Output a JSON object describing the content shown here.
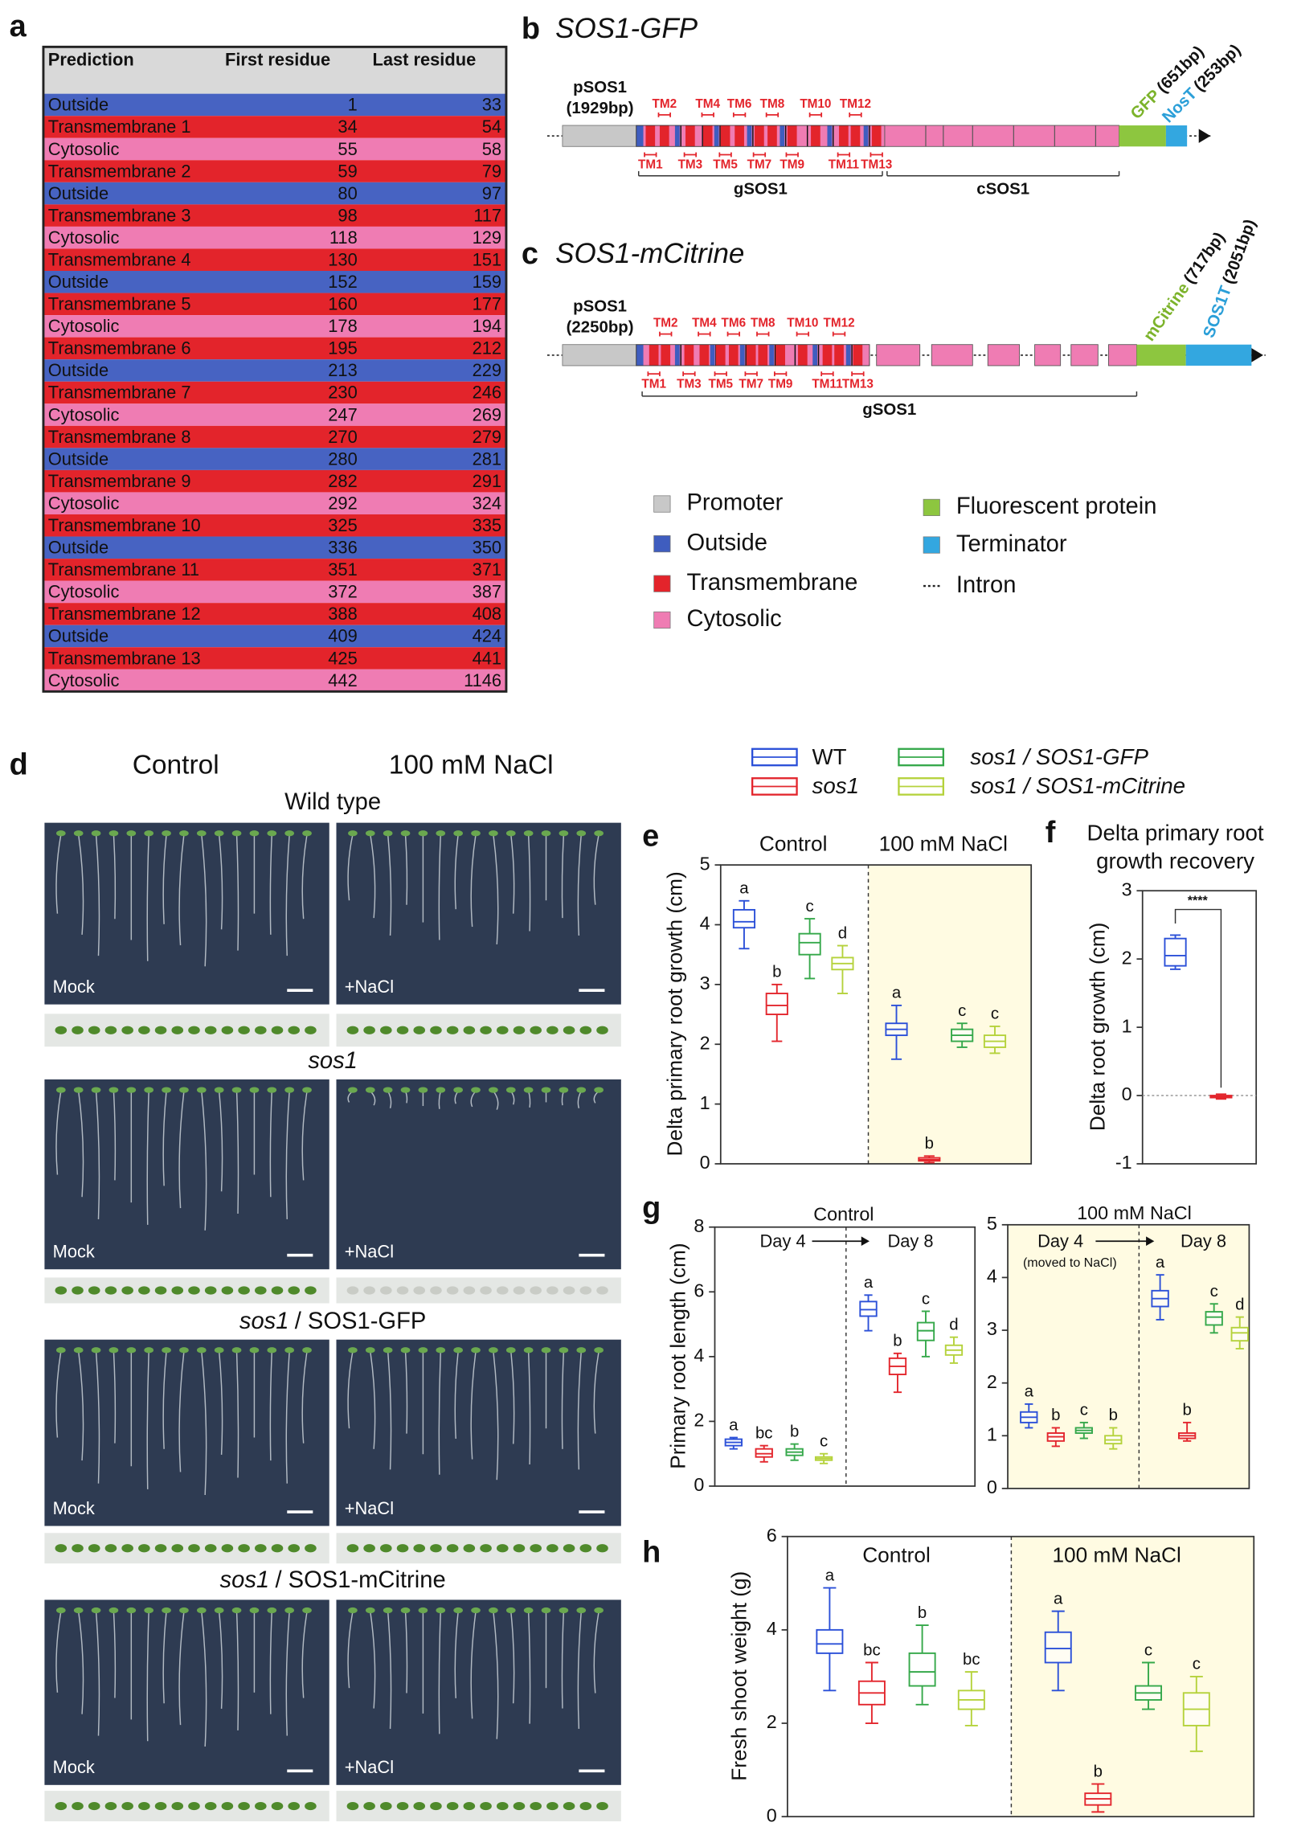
{
  "table": {
    "label": "a",
    "columns": [
      "Prediction",
      "First residue",
      "Last residue"
    ],
    "rows": [
      {
        "region": "Outside",
        "first": 1,
        "last": 33,
        "color": "#4763c2"
      },
      {
        "region": "Transmembrane 1",
        "first": 34,
        "last": 54,
        "color": "#e3242b"
      },
      {
        "region": "Cytosolic",
        "first": 55,
        "last": 58,
        "color": "#ef7cb3"
      },
      {
        "region": "Transmembrane 2",
        "first": 59,
        "last": 79,
        "color": "#e3242b"
      },
      {
        "region": "Outside",
        "first": 80,
        "last": 97,
        "color": "#4763c2"
      },
      {
        "region": "Transmembrane 3",
        "first": 98,
        "last": 117,
        "color": "#e3242b"
      },
      {
        "region": "Cytosolic",
        "first": 118,
        "last": 129,
        "color": "#ef7cb3"
      },
      {
        "region": "Transmembrane 4",
        "first": 130,
        "last": 151,
        "color": "#e3242b"
      },
      {
        "region": "Outside",
        "first": 152,
        "last": 159,
        "color": "#4763c2"
      },
      {
        "region": "Transmembrane 5",
        "first": 160,
        "last": 177,
        "color": "#e3242b"
      },
      {
        "region": "Cytosolic",
        "first": 178,
        "last": 194,
        "color": "#ef7cb3"
      },
      {
        "region": "Transmembrane 6",
        "first": 195,
        "last": 212,
        "color": "#e3242b"
      },
      {
        "region": "Outside",
        "first": 213,
        "last": 229,
        "color": "#4763c2"
      },
      {
        "region": "Transmembrane 7",
        "first": 230,
        "last": 246,
        "color": "#e3242b"
      },
      {
        "region": "Cytosolic",
        "first": 247,
        "last": 269,
        "color": "#ef7cb3"
      },
      {
        "region": "Transmembrane 8",
        "first": 270,
        "last": 279,
        "color": "#e3242b"
      },
      {
        "region": "Outside",
        "first": 280,
        "last": 281,
        "color": "#4763c2"
      },
      {
        "region": "Transmembrane 9",
        "first": 282,
        "last": 291,
        "color": "#e3242b"
      },
      {
        "region": "Cytosolic",
        "first": 292,
        "last": 324,
        "color": "#ef7cb3"
      },
      {
        "region": "Transmembrane 10",
        "first": 325,
        "last": 335,
        "color": "#e3242b"
      },
      {
        "region": "Outside",
        "first": 336,
        "last": 350,
        "color": "#4763c2"
      },
      {
        "region": "Transmembrane 11",
        "first": 351,
        "last": 371,
        "color": "#e3242b"
      },
      {
        "region": "Cytosolic",
        "first": 372,
        "last": 387,
        "color": "#ef7cb3"
      },
      {
        "region": "Transmembrane 12",
        "first": 388,
        "last": 408,
        "color": "#e3242b"
      },
      {
        "region": "Outside",
        "first": 409,
        "last": 424,
        "color": "#4763c2"
      },
      {
        "region": "Transmembrane 13",
        "first": 425,
        "last": 441,
        "color": "#e3242b"
      },
      {
        "region": "Cytosolic",
        "first": 442,
        "last": 1146,
        "color": "#ef7cb3"
      }
    ]
  },
  "panel_b": {
    "label": "b",
    "title": "SOS1-GFP",
    "promoter": [
      "pSOS1",
      "(1929bp)"
    ],
    "tm_top": [
      "TM2",
      "TM4",
      "TM6",
      "TM8",
      "TM10",
      "TM12"
    ],
    "tm_bottom": [
      "TM1",
      "TM3",
      "TM5",
      "TM7",
      "TM9",
      "TM11",
      "TM13"
    ],
    "regions": [
      "gSOS1",
      "cSOS1"
    ],
    "tag": {
      "name": "GFP",
      "size": "(651bp)"
    },
    "terminator": {
      "name": "NosT",
      "size": "(253bp)"
    }
  },
  "panel_c": {
    "label": "c",
    "title": "SOS1-mCitrine",
    "promoter": [
      "pSOS1",
      "(2250bp)"
    ],
    "tm_top": [
      "TM2",
      "TM4",
      "TM6",
      "TM8",
      "TM10",
      "TM12"
    ],
    "tm_bottom": [
      "TM1",
      "TM3",
      "TM5",
      "TM7",
      "TM9",
      "TM11",
      "TM13"
    ],
    "regions": [
      "gSOS1"
    ],
    "tag": {
      "name": "mCitrine",
      "size": "(717bp)"
    },
    "terminator": {
      "name": "SOS1T",
      "size": "(2051bp)"
    }
  },
  "gene_legend": {
    "items": [
      {
        "name": "Promoter",
        "color": "#c8c8c8"
      },
      {
        "name": "Outside",
        "color": "#3f5dbf"
      },
      {
        "name": "Transmembrane",
        "color": "#e3242b"
      },
      {
        "name": "Cytosolic",
        "color": "#ef7cb3"
      },
      {
        "name": "Fluorescent protein",
        "color": "#8dc63f"
      },
      {
        "name": "Terminator",
        "color": "#33a7e0"
      },
      {
        "name": "Intron"
      }
    ]
  },
  "photos": {
    "label": "d",
    "conditions": [
      "Control",
      "100 mM NaCl"
    ],
    "treatments": [
      "Mock",
      "+NaCl"
    ],
    "rows": [
      {
        "title": "Wild type"
      },
      {
        "title": "sos1"
      },
      {
        "title": "sos1",
        "subtitle": "/ SOS1-GFP"
      },
      {
        "title": "sos1",
        "subtitle": "/ SOS1-mCitrine"
      }
    ]
  },
  "legend": {
    "items": [
      {
        "name": "WT",
        "color": "#2b50d8"
      },
      {
        "name": "sos1",
        "color": "#e3262d"
      },
      {
        "name": "sos1 / SOS1-GFP",
        "color": "#35a84a"
      },
      {
        "name": "sos1 / SOS1-mCitrine",
        "color": "#b5d23c"
      }
    ]
  },
  "chart_data": [
    {
      "type": "box",
      "label": "e",
      "ylabel": "Delta primary root growth (cm)",
      "categories": [
        "Control",
        "100 mM NaCl"
      ],
      "ylim": [
        0,
        5
      ],
      "yticks": [
        0,
        1,
        2,
        3,
        4,
        5
      ],
      "divider": true,
      "shade": [
        false,
        true
      ],
      "series": [
        {
          "color": "#2b50d8",
          "min": [
            3.6,
            1.75
          ],
          "q1": [
            3.95,
            2.15
          ],
          "median": [
            4.05,
            2.25
          ],
          "q3": [
            4.25,
            2.35
          ],
          "max": [
            4.4,
            2.65
          ],
          "letters": [
            "a",
            "a"
          ]
        },
        {
          "color": "#e3262d",
          "min": [
            2.05,
            0.02
          ],
          "q1": [
            2.5,
            0.05
          ],
          "median": [
            2.65,
            0.07
          ],
          "q3": [
            2.85,
            0.1
          ],
          "max": [
            3.0,
            0.13
          ],
          "letters": [
            "b",
            "b"
          ]
        },
        {
          "color": "#35a84a",
          "min": [
            3.1,
            1.95
          ],
          "q1": [
            3.5,
            2.05
          ],
          "median": [
            3.7,
            2.15
          ],
          "q3": [
            3.85,
            2.25
          ],
          "max": [
            4.1,
            2.35
          ],
          "letters": [
            "c",
            "c"
          ]
        },
        {
          "color": "#b5d23c",
          "min": [
            2.85,
            1.85
          ],
          "q1": [
            3.25,
            1.95
          ],
          "median": [
            3.35,
            2.05
          ],
          "q3": [
            3.45,
            2.15
          ],
          "max": [
            3.65,
            2.3
          ],
          "letters": [
            "d",
            "c"
          ]
        }
      ]
    },
    {
      "type": "box",
      "label": "f",
      "title": [
        "Delta primary root",
        "growth recovery"
      ],
      "ylabel": "Delta root growth (cm)",
      "ylim": [
        -1,
        3
      ],
      "yticks": [
        -1,
        0,
        1,
        2,
        3
      ],
      "zero_line": true,
      "annotation": "****",
      "series": [
        {
          "color": "#2b50d8",
          "min": [
            1.85
          ],
          "q1": [
            1.9
          ],
          "median": [
            2.05
          ],
          "q3": [
            2.3
          ],
          "max": [
            2.35
          ]
        },
        {
          "color": "#e3262d",
          "min": [
            -0.05
          ],
          "q1": [
            -0.03
          ],
          "median": [
            -0.02
          ],
          "q3": [
            0.0
          ],
          "max": [
            0.02
          ]
        }
      ]
    },
    {
      "type": "box",
      "label": "g",
      "title": "Control",
      "ylabel": "Primary root length (cm)",
      "categories": [
        "Day 4",
        "Day 8"
      ],
      "ylim": [
        0,
        8
      ],
      "yticks": [
        0,
        2,
        4,
        6,
        8
      ],
      "divider": true,
      "series": [
        {
          "color": "#2b50d8",
          "min": [
            1.15,
            4.8
          ],
          "q1": [
            1.25,
            5.25
          ],
          "median": [
            1.35,
            5.45
          ],
          "q3": [
            1.45,
            5.7
          ],
          "max": [
            1.5,
            5.9
          ],
          "letters": [
            "a",
            "a"
          ]
        },
        {
          "color": "#e3262d",
          "min": [
            0.75,
            2.9
          ],
          "q1": [
            0.9,
            3.45
          ],
          "median": [
            1.0,
            3.7
          ],
          "q3": [
            1.15,
            3.95
          ],
          "max": [
            1.25,
            4.1
          ],
          "letters": [
            "bc",
            "b"
          ]
        },
        {
          "color": "#35a84a",
          "min": [
            0.8,
            4.0
          ],
          "q1": [
            0.95,
            4.5
          ],
          "median": [
            1.05,
            4.8
          ],
          "q3": [
            1.15,
            5.05
          ],
          "max": [
            1.3,
            5.4
          ],
          "letters": [
            "b",
            "c"
          ]
        },
        {
          "color": "#b5d23c",
          "min": [
            0.7,
            3.8
          ],
          "q1": [
            0.8,
            4.05
          ],
          "median": [
            0.85,
            4.2
          ],
          "q3": [
            0.9,
            4.35
          ],
          "max": [
            1.0,
            4.6
          ],
          "letters": [
            "c",
            "d"
          ]
        }
      ]
    },
    {
      "type": "box",
      "title": "100 mM NaCl",
      "categories": [
        "Day 4",
        "Day 8"
      ],
      "note": "(moved to NaCl)",
      "ylim": [
        0,
        5
      ],
      "yticks": [
        0,
        1,
        2,
        3,
        4,
        5
      ],
      "divider": true,
      "shade": [
        true,
        true
      ],
      "series": [
        {
          "color": "#2b50d8",
          "min": [
            1.15,
            3.2
          ],
          "q1": [
            1.25,
            3.45
          ],
          "median": [
            1.35,
            3.6
          ],
          "q3": [
            1.45,
            3.75
          ],
          "max": [
            1.6,
            4.05
          ],
          "letters": [
            "a",
            "a"
          ]
        },
        {
          "color": "#e3262d",
          "min": [
            0.8,
            0.9
          ],
          "q1": [
            0.9,
            0.95
          ],
          "median": [
            0.98,
            1.0
          ],
          "q3": [
            1.05,
            1.05
          ],
          "max": [
            1.15,
            1.25
          ],
          "letters": [
            "b",
            "b"
          ]
        },
        {
          "color": "#35a84a",
          "min": [
            0.95,
            2.95
          ],
          "q1": [
            1.05,
            3.1
          ],
          "median": [
            1.1,
            3.25
          ],
          "q3": [
            1.15,
            3.35
          ],
          "max": [
            1.25,
            3.5
          ],
          "letters": [
            "c",
            "c"
          ]
        },
        {
          "color": "#b5d23c",
          "min": [
            0.75,
            2.65
          ],
          "q1": [
            0.85,
            2.8
          ],
          "median": [
            0.92,
            2.95
          ],
          "q3": [
            1.0,
            3.05
          ],
          "max": [
            1.15,
            3.25
          ],
          "letters": [
            "b",
            "d"
          ]
        }
      ]
    },
    {
      "type": "box",
      "label": "h",
      "ylabel": "Fresh shoot weight (g)",
      "categories": [
        "Control",
        "100 mM NaCl"
      ],
      "ylim": [
        0,
        6
      ],
      "yticks": [
        0,
        2,
        4,
        6
      ],
      "divider": true,
      "shade": [
        false,
        true
      ],
      "series": [
        {
          "color": "#2b50d8",
          "min": [
            2.7,
            2.7
          ],
          "q1": [
            3.5,
            3.3
          ],
          "median": [
            3.7,
            3.6
          ],
          "q3": [
            4.0,
            3.95
          ],
          "max": [
            4.9,
            4.4
          ],
          "letters": [
            "a",
            "a"
          ]
        },
        {
          "color": "#e3262d",
          "min": [
            2.0,
            0.1
          ],
          "q1": [
            2.4,
            0.25
          ],
          "median": [
            2.65,
            0.38
          ],
          "q3": [
            2.9,
            0.5
          ],
          "max": [
            3.3,
            0.7
          ],
          "letters": [
            "bc",
            "b"
          ]
        },
        {
          "color": "#35a84a",
          "min": [
            2.4,
            2.3
          ],
          "q1": [
            2.8,
            2.5
          ],
          "median": [
            3.1,
            2.65
          ],
          "q3": [
            3.5,
            2.8
          ],
          "max": [
            4.1,
            3.3
          ],
          "letters": [
            "b",
            "c"
          ]
        },
        {
          "color": "#b5d23c",
          "min": [
            1.95,
            1.4
          ],
          "q1": [
            2.3,
            1.95
          ],
          "median": [
            2.5,
            2.3
          ],
          "q3": [
            2.7,
            2.65
          ],
          "max": [
            3.1,
            3.0
          ],
          "letters": [
            "bc",
            "c"
          ]
        }
      ]
    }
  ]
}
